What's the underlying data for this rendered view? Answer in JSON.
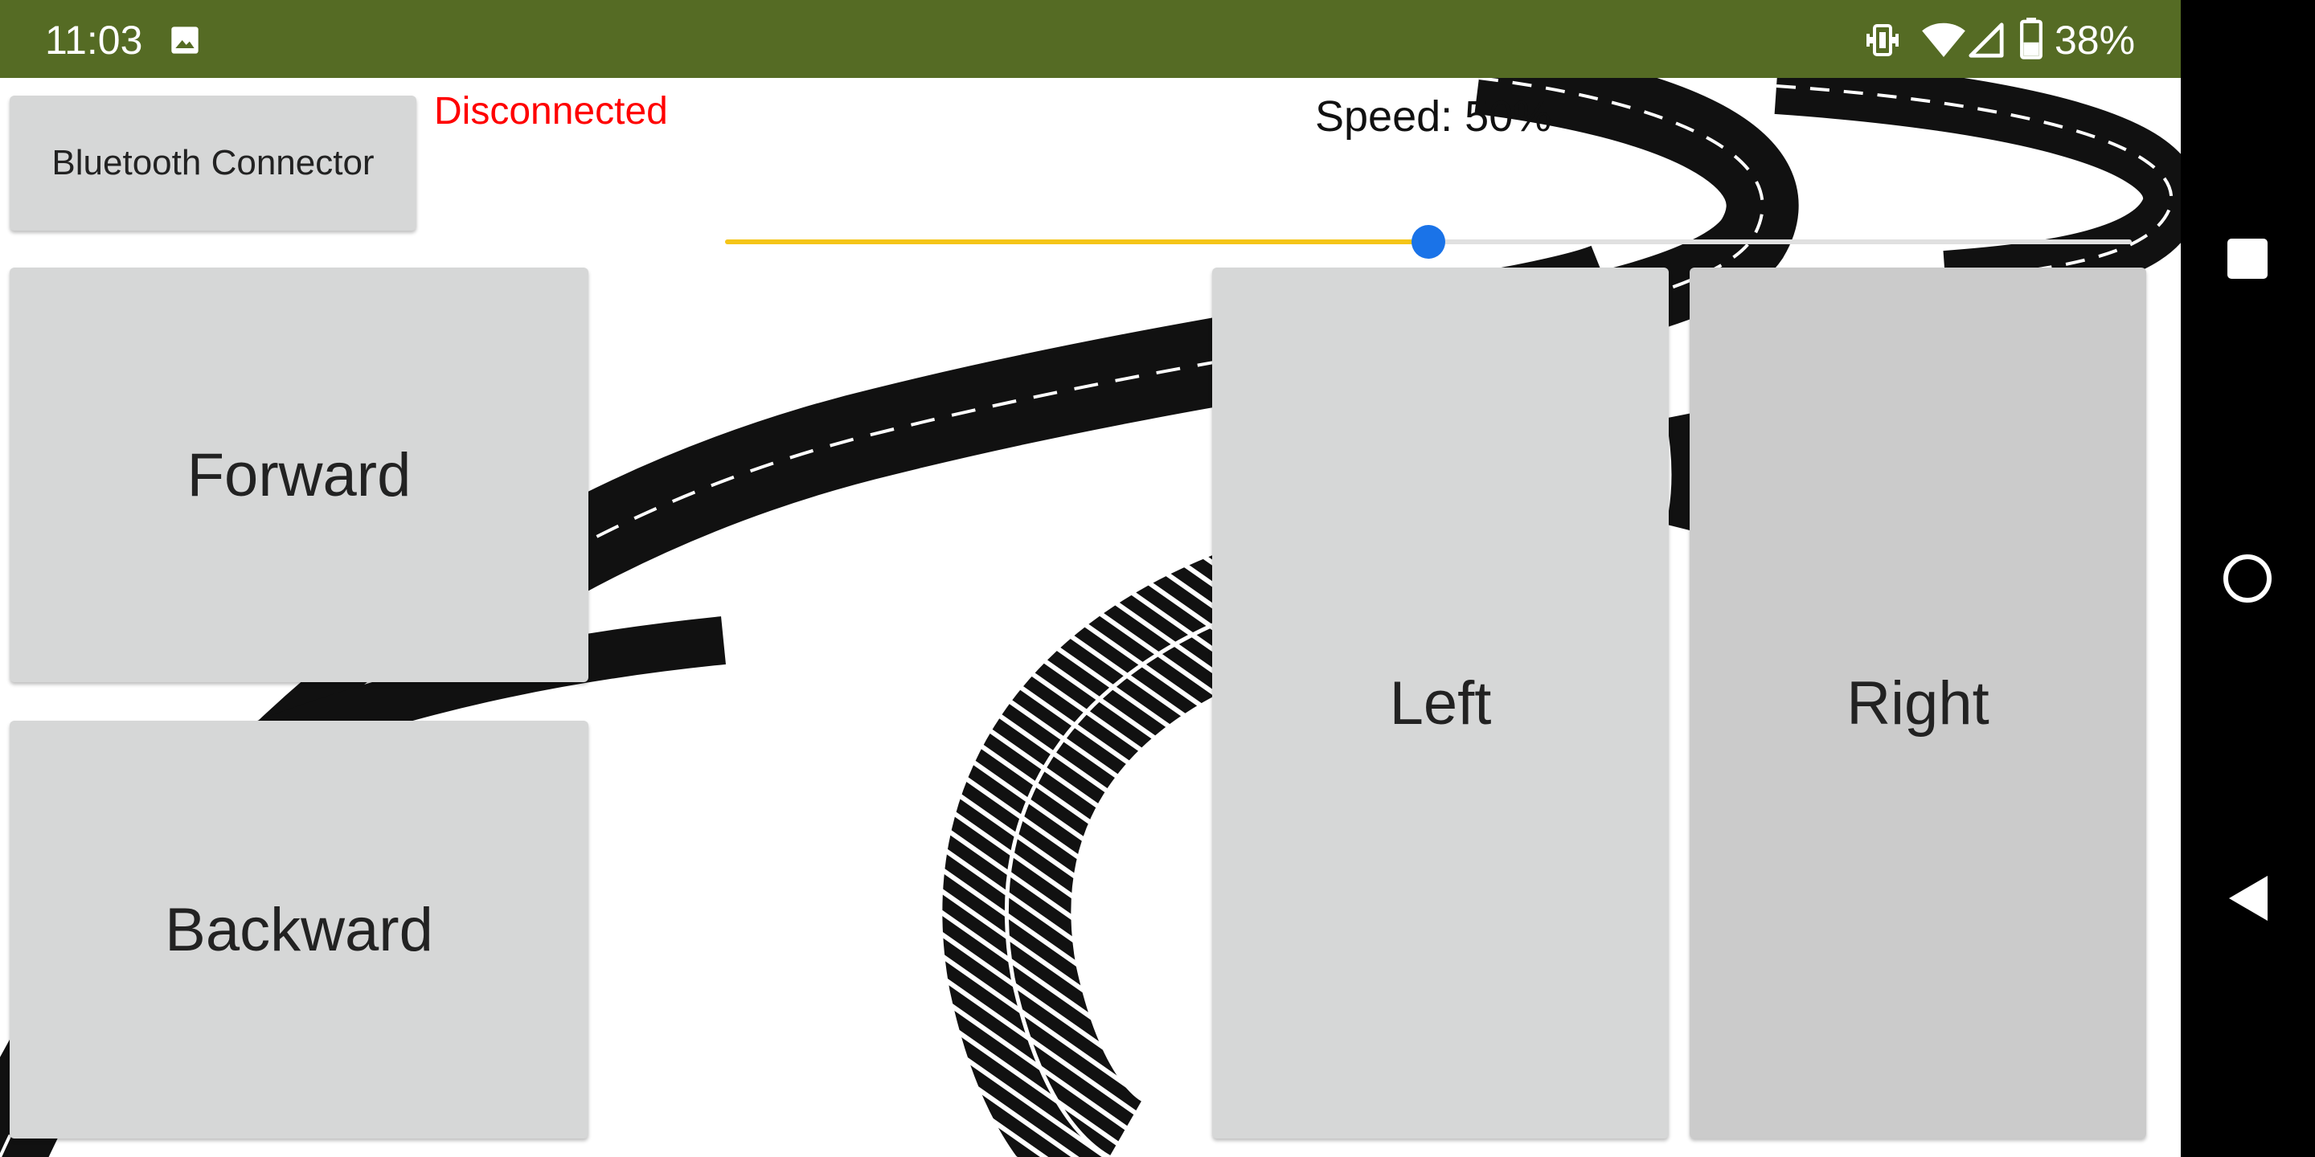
{
  "status_bar": {
    "time": "11:03",
    "battery_percent": "38%",
    "icons": [
      "image-icon",
      "vibrate-icon",
      "wifi-icon",
      "signal-icon",
      "battery-icon"
    ],
    "background_color": "#556b24"
  },
  "app": {
    "bluetooth_button_label": "Bluetooth Connector",
    "connection_status": "Disconnected",
    "connection_status_color": "#ff0000",
    "speed": {
      "label": "Speed:",
      "value_text": "50%",
      "value": 0.5,
      "fill_color": "#f5c518",
      "thumb_color": "#1a73e8"
    },
    "controls": {
      "forward_label": "Forward",
      "backward_label": "Backward",
      "left_label": "Left",
      "right_label": "Right"
    }
  },
  "nav_bar": {
    "buttons": [
      "recents-icon",
      "home-icon",
      "back-icon"
    ]
  }
}
